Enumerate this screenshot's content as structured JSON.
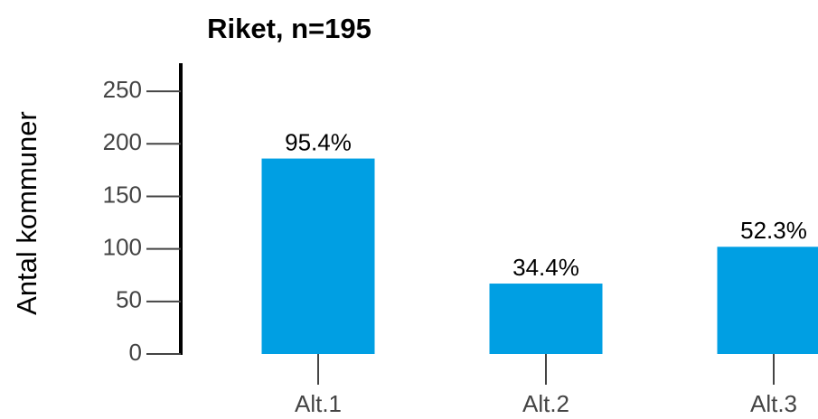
{
  "chart_data": {
    "type": "bar",
    "title": "Riket, n=195",
    "ylabel": "Antal kommuner",
    "categories": [
      "Alt.1",
      "Alt.2",
      "Alt.3"
    ],
    "values": [
      186,
      67,
      102
    ],
    "value_labels": [
      "95.4%",
      "34.4%",
      "52.3%"
    ],
    "color": "#009fe3",
    "ylim": [
      0,
      275
    ],
    "yticks": [
      0,
      50,
      100,
      150,
      200,
      250
    ]
  }
}
